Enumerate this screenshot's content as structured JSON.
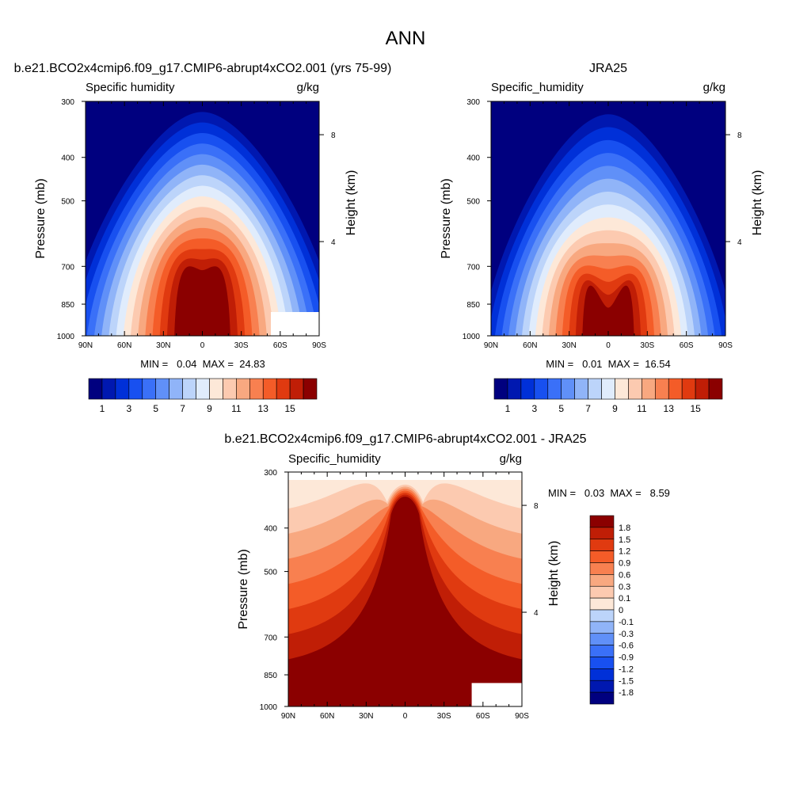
{
  "page_title": "ANN",
  "colors": {
    "ramp": [
      "#00007f",
      "#0018b0",
      "#0030d8",
      "#1850f0",
      "#3a70f8",
      "#6090f8",
      "#90b4f8",
      "#bcd4fa",
      "#e0ecfc",
      "#fde8d8",
      "#fccab0",
      "#f8a880",
      "#f88050",
      "#f45c28",
      "#e03a10",
      "#c01e06",
      "#8b0000"
    ]
  },
  "chart_data": [
    {
      "type": "heatmap",
      "title": "b.e21.BCO2x4cmip6.f09_g17.CMIP6-abrupt4xCO2.001 (yrs 75-99)",
      "left_label": "Specific humidity",
      "right_label": "g/kg",
      "xlabel": "",
      "ylabel": "Pressure (mb)",
      "y2label": "Height (km)",
      "x_ticks": [
        "90N",
        "60N",
        "30N",
        "0",
        "30S",
        "60S",
        "90S"
      ],
      "y_ticks": [
        "300",
        "400",
        "500",
        "700",
        "850",
        "1000"
      ],
      "y_tick_values": [
        300,
        400,
        500,
        700,
        850,
        1000
      ],
      "y2_ticks": [
        "8",
        "4"
      ],
      "y2_tick_values": [
        8,
        4
      ],
      "ylim": [
        1000,
        300
      ],
      "xlim": [
        90,
        -90
      ],
      "grid": false,
      "stats": "MIN =   0.04  MAX =  24.83",
      "min": 0.04,
      "max": 24.83,
      "colorbar_labels": [
        "1",
        "3",
        "5",
        "7",
        "9",
        "11",
        "13",
        "15"
      ],
      "levels": [
        1,
        2,
        3,
        4,
        5,
        6,
        7,
        8,
        9,
        10,
        11,
        12,
        13,
        14,
        15,
        16
      ],
      "peak_value": 24.83,
      "peak_pressure": 1000,
      "peak_lat": 0
    },
    {
      "type": "heatmap",
      "title": "JRA25",
      "left_label": "Specific_humidity",
      "right_label": "g/kg",
      "xlabel": "",
      "ylabel": "Pressure (mb)",
      "y2label": "Height (km)",
      "x_ticks": [
        "90N",
        "60N",
        "30N",
        "0",
        "30S",
        "60S",
        "90S"
      ],
      "y_ticks": [
        "300",
        "400",
        "500",
        "700",
        "850",
        "1000"
      ],
      "y_tick_values": [
        300,
        400,
        500,
        700,
        850,
        1000
      ],
      "y2_ticks": [
        "8",
        "4"
      ],
      "y2_tick_values": [
        8,
        4
      ],
      "ylim": [
        1000,
        300
      ],
      "xlim": [
        90,
        -90
      ],
      "grid": false,
      "stats": "MIN =   0.01  MAX =  16.54",
      "min": 0.01,
      "max": 16.54,
      "colorbar_labels": [
        "1",
        "3",
        "5",
        "7",
        "9",
        "11",
        "13",
        "15"
      ],
      "levels": [
        1,
        2,
        3,
        4,
        5,
        6,
        7,
        8,
        9,
        10,
        11,
        12,
        13,
        14,
        15,
        16
      ],
      "peak_value": 16.54,
      "peak_pressure": 1000,
      "peak_lat": 0
    },
    {
      "type": "heatmap",
      "title": "b.e21.BCO2x4cmip6.f09_g17.CMIP6-abrupt4xCO2.001 - JRA25",
      "left_label": "Specific_humidity",
      "right_label": "g/kg",
      "xlabel": "",
      "ylabel": "Pressure (mb)",
      "y2label": "Height (km)",
      "x_ticks": [
        "90N",
        "60N",
        "30N",
        "0",
        "30S",
        "60S",
        "90S"
      ],
      "y_ticks": [
        "300",
        "400",
        "500",
        "700",
        "850",
        "1000"
      ],
      "y_tick_values": [
        300,
        400,
        500,
        700,
        850,
        1000
      ],
      "y2_ticks": [
        "8",
        "4"
      ],
      "y2_tick_values": [
        8,
        4
      ],
      "ylim": [
        1000,
        300
      ],
      "xlim": [
        90,
        -90
      ],
      "grid": false,
      "stats": "MIN =   0.03  MAX =   8.59",
      "min": 0.03,
      "max": 8.59,
      "colorbar_labels": [
        "1.8",
        "1.5",
        "1.2",
        "0.9",
        "0.6",
        "0.3",
        "0.1",
        "0",
        "-0.1",
        "-0.3",
        "-0.6",
        "-0.9",
        "-1.2",
        "-1.5",
        "-1.8"
      ],
      "levels": [
        -1.8,
        -1.5,
        -1.2,
        -0.9,
        -0.6,
        -0.3,
        -0.1,
        0,
        0.1,
        0.3,
        0.6,
        0.9,
        1.2,
        1.5,
        1.8
      ],
      "legend_position": "right"
    }
  ]
}
